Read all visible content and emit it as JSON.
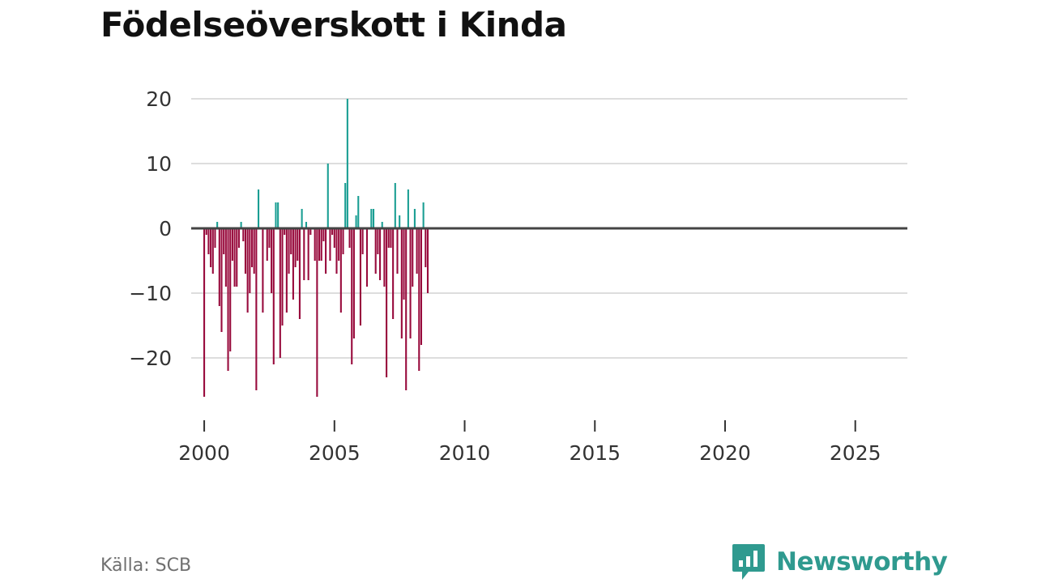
{
  "title": "Födelseöverskott i Kinda",
  "source": "Källa: SCB",
  "brand": {
    "name": "Newsworthy",
    "icon": "chart-bubble-icon",
    "color": "#2f9a8f"
  },
  "colors": {
    "positive": "#1a9e93",
    "negative": "#980a3c",
    "zero_line": "#444444",
    "grid": "#dddddd"
  },
  "chart_data": {
    "type": "bar",
    "title": "Födelseöverskott i Kinda",
    "xlabel": "",
    "ylabel": "",
    "frequency": "monthly",
    "x_start": "2000-01",
    "ylim": [
      -28,
      22
    ],
    "xlim": [
      "1999-07",
      "2027-01"
    ],
    "y_ticks": [
      20,
      10,
      0,
      -10,
      -20
    ],
    "y_tick_labels": [
      "20",
      "10",
      "0",
      "−10",
      "−20"
    ],
    "x_ticks": [
      2000,
      2005,
      2010,
      2015,
      2020,
      2025
    ],
    "x_tick_labels": [
      "2000",
      "2005",
      "2010",
      "2015",
      "2020",
      "2025"
    ],
    "grid": true,
    "legend": "none",
    "values": [
      -26,
      -1,
      -4,
      -6,
      -7,
      -3,
      1,
      -12,
      -16,
      -4,
      -9,
      -22,
      -19,
      -5,
      -9,
      -9,
      -3,
      1,
      -2,
      -7,
      -13,
      -10,
      -6,
      -7,
      -25,
      6,
      0,
      -13,
      0,
      -5,
      -3,
      -10,
      -21,
      4,
      4,
      -20,
      -15,
      -1,
      -13,
      -7,
      -4,
      -11,
      -6,
      -5,
      -14,
      3,
      -8,
      1,
      -8,
      -1,
      0,
      -5,
      -26,
      -5,
      -5,
      -2,
      -7,
      10,
      -5,
      -1,
      -3,
      -7,
      -5,
      -13,
      -4,
      7,
      20,
      -3,
      -21,
      -17,
      2,
      5,
      -15,
      -4,
      0,
      -9,
      0,
      3,
      3,
      -7,
      -4,
      -8,
      1,
      -9,
      -23,
      -3,
      -3,
      -14,
      7,
      -7,
      2,
      -17,
      -11,
      -25,
      6,
      -17,
      -9,
      3,
      -7,
      -22,
      -18,
      4,
      -6,
      -10
    ]
  }
}
